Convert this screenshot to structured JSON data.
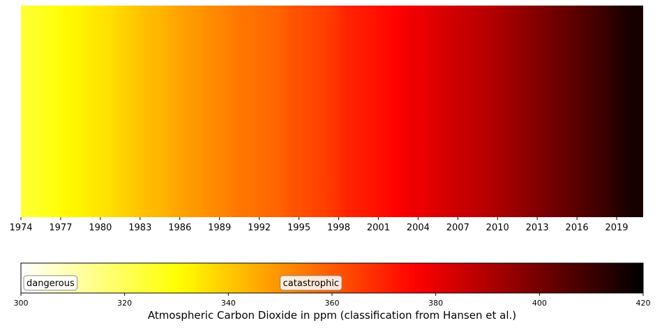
{
  "chart_data": [
    {
      "type": "heatmap",
      "title": "",
      "xlabel": "",
      "ylabel": "",
      "colormap": "hot_r",
      "color_range": [
        300,
        420
      ],
      "x_range": [
        1974,
        2021
      ],
      "x": [
        1974,
        1975,
        1976,
        1977,
        1978,
        1979,
        1980,
        1981,
        1982,
        1983,
        1984,
        1985,
        1986,
        1987,
        1988,
        1989,
        1990,
        1991,
        1992,
        1993,
        1994,
        1995,
        1996,
        1997,
        1998,
        1999,
        2000,
        2001,
        2002,
        2003,
        2004,
        2005,
        2006,
        2007,
        2008,
        2009,
        2010,
        2011,
        2012,
        2013,
        2014,
        2015,
        2016,
        2017,
        2018,
        2019,
        2020
      ],
      "series": [
        {
          "values": [
            324.47,
            326.74,
            328.98,
            331.75,
            332.47,
            334.34,
            335.71,
            337.93,
            340.06,
            342.41,
            343.45,
            346.05,
            347.87,
            349.52,
            351.4,
            352.9,
            355.01,
            355.5,
            357.28,
            358.2,
            361.26,
            362.56,
            364.33,
            366.01,
            369.78,
            371.08,
            372.36,
            374.36,
            376.35,
            378.97,
            379.67,
            382.55,
            384.13,
            385.85,
            387.42,
            388.98,
            391.56,
            393.81,
            396.37,
            398.73,
            401.2,
            403.2,
            406.01,
            408.71,
            411.05,
            414.66,
            416.26
          ]
        }
      ],
      "x_ticks": [
        "1974",
        "1977",
        "1980",
        "1983",
        "1986",
        "1989",
        "1992",
        "1995",
        "1998",
        "2001",
        "2004",
        "2007",
        "2010",
        "2013",
        "2016",
        "2019"
      ],
      "grid": false,
      "legend": "none"
    },
    {
      "type": "colorbar",
      "orientation": "horizontal",
      "title": "",
      "xlabel": "Atmospheric Carbon Dioxide in ppm (classification from Hansen et al.)",
      "ylabel": "",
      "xlim": [
        300,
        420
      ],
      "colormap": "hot_r",
      "x_ticks": [
        "300",
        "320",
        "340",
        "360",
        "380",
        "400",
        "420"
      ],
      "annotations": [
        {
          "text": "dangerous",
          "x": 300
        },
        {
          "text": "catastrophic",
          "x": 350
        }
      ]
    }
  ]
}
